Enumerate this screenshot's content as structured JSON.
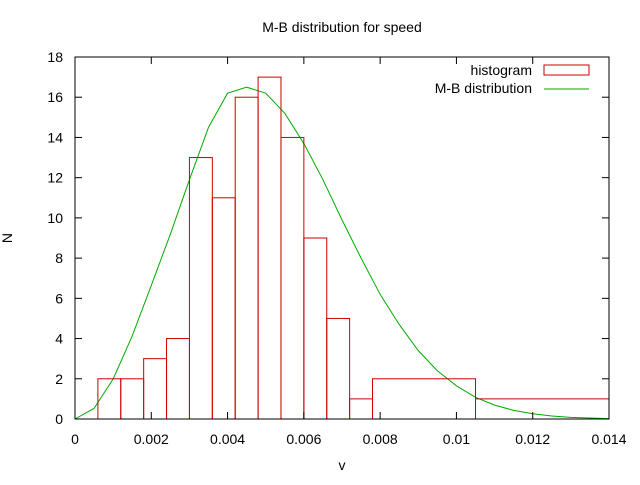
{
  "chart_data": {
    "type": "bar",
    "title": "M-B distribution for speed",
    "xlabel": "v",
    "ylabel": "N",
    "xlim": [
      0,
      0.014
    ],
    "ylim": [
      0,
      18
    ],
    "xticks": [
      "0",
      "0.002",
      "0.004",
      "0.006",
      "0.008",
      "0.01",
      "0.012",
      "0.014"
    ],
    "xtick_values": [
      0,
      0.002,
      0.004,
      0.006,
      0.008,
      0.01,
      0.012,
      0.014
    ],
    "yticks": [
      "0",
      "2",
      "4",
      "6",
      "8",
      "10",
      "12",
      "14",
      "16",
      "18"
    ],
    "ytick_values": [
      0,
      2,
      4,
      6,
      8,
      10,
      12,
      14,
      16,
      18
    ],
    "grid": false,
    "legend_position": "top-right",
    "series": [
      {
        "name": "histogram",
        "type": "histogram",
        "color": "#cc0000",
        "bins": [
          {
            "x0": 0.0006,
            "x1": 0.0012,
            "count": 2
          },
          {
            "x0": 0.0012,
            "x1": 0.0018,
            "count": 2
          },
          {
            "x0": 0.0018,
            "x1": 0.0024,
            "count": 3
          },
          {
            "x0": 0.0024,
            "x1": 0.003,
            "count": 4
          },
          {
            "x0": 0.003,
            "x1": 0.0036,
            "count": 13
          },
          {
            "x0": 0.0036,
            "x1": 0.0042,
            "count": 11
          },
          {
            "x0": 0.0042,
            "x1": 0.0048,
            "count": 16
          },
          {
            "x0": 0.0048,
            "x1": 0.0054,
            "count": 17
          },
          {
            "x0": 0.0054,
            "x1": 0.006,
            "count": 14
          },
          {
            "x0": 0.006,
            "x1": 0.0066,
            "count": 9
          },
          {
            "x0": 0.0066,
            "x1": 0.0072,
            "count": 5
          },
          {
            "x0": 0.0072,
            "x1": 0.0078,
            "count": 1
          },
          {
            "x0": 0.0078,
            "x1": 0.0105,
            "count": 2
          },
          {
            "x0": 0.0105,
            "x1": 0.014,
            "count": 1
          }
        ]
      },
      {
        "name": "M-B distribution",
        "type": "line",
        "color": "#00aa00",
        "x": [
          0,
          0.0005,
          0.001,
          0.0015,
          0.002,
          0.0025,
          0.003,
          0.0035,
          0.004,
          0.0045,
          0.005,
          0.0055,
          0.006,
          0.0065,
          0.007,
          0.0075,
          0.008,
          0.0085,
          0.009,
          0.0095,
          0.01,
          0.0105,
          0.011,
          0.0115,
          0.012,
          0.0125,
          0.013,
          0.0135,
          0.014
        ],
        "y": [
          0,
          0.53,
          1.99,
          4.13,
          6.64,
          9.19,
          11.9,
          14.5,
          16.2,
          16.5,
          16.2,
          15.2,
          13.7,
          11.9,
          9.9,
          8.0,
          6.2,
          4.7,
          3.4,
          2.4,
          1.65,
          1.08,
          0.69,
          0.43,
          0.26,
          0.15,
          0.08,
          0.05,
          0.02
        ]
      }
    ]
  }
}
